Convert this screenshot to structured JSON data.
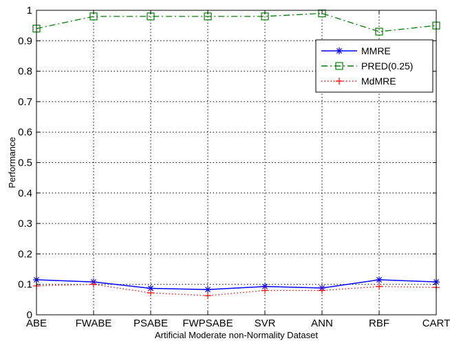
{
  "chart_data": {
    "type": "line",
    "title": "",
    "xlabel": "Artificial Moderate non-Normality Dataset",
    "ylabel": "Performance",
    "categories": [
      "ABE",
      "FWABE",
      "PSABE",
      "FWPSABE",
      "SVR",
      "ANN",
      "RBF",
      "CART"
    ],
    "ylim": [
      0,
      1
    ],
    "yticks": [
      "0",
      "0.1",
      "0.2",
      "0.3",
      "0.4",
      "0.5",
      "0.6",
      "0.7",
      "0.8",
      "0.9",
      "1"
    ],
    "grid": true,
    "legend_position": "top-right",
    "series": [
      {
        "name": "MMRE",
        "color": "#0000ff",
        "line_style": "solid",
        "marker": "asterisk",
        "values": [
          0.115,
          0.108,
          0.087,
          0.083,
          0.093,
          0.088,
          0.115,
          0.108
        ]
      },
      {
        "name": "PRED(0.25)",
        "color": "#008000",
        "line_style": "dash-dot",
        "marker": "square",
        "values": [
          0.94,
          0.98,
          0.98,
          0.98,
          0.98,
          0.99,
          0.93,
          0.95
        ]
      },
      {
        "name": "MdMRE",
        "color": "#ff0000",
        "line_style": "dotted",
        "marker": "plus",
        "values": [
          0.095,
          0.1,
          0.072,
          0.063,
          0.08,
          0.08,
          0.093,
          0.09
        ]
      }
    ]
  }
}
